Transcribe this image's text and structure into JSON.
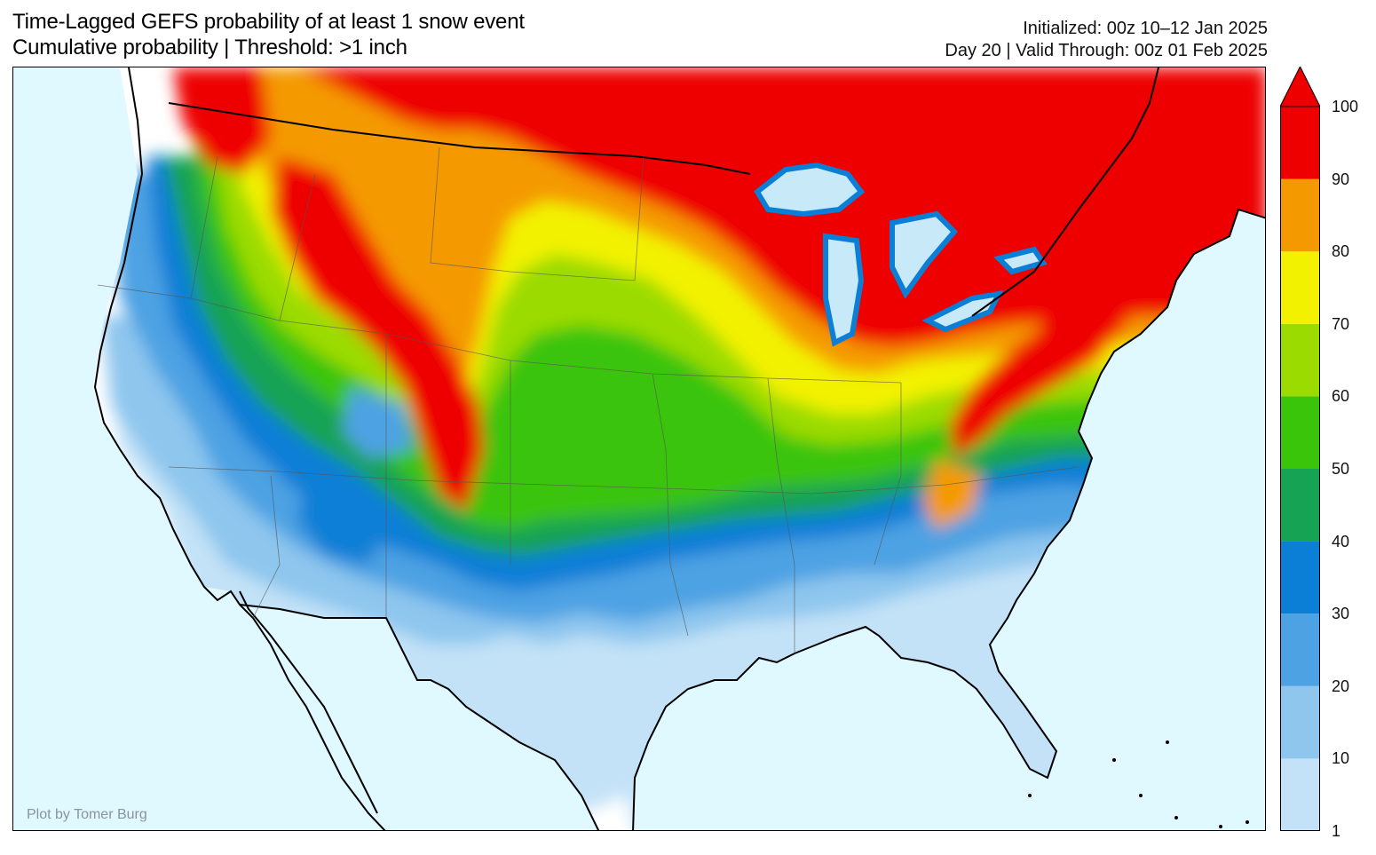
{
  "header": {
    "title_line1": "Time-Lagged GEFS probability of at least 1 snow event",
    "title_line2": "Cumulative probability | Threshold: >1 inch",
    "initialized": "Initialized: 00z 10–12 Jan 2025",
    "valid": "Day 20 | Valid Through: 00z 01 Feb 2025"
  },
  "credit": "Plot by Tomer Burg",
  "map": {
    "region": "Contiguous United States",
    "ocean_color": "#e0f8ff",
    "land_below_threshold_color": "#ffffff"
  },
  "colorbar": {
    "ticks": [
      "1",
      "10",
      "20",
      "30",
      "40",
      "50",
      "60",
      "70",
      "80",
      "90",
      "100"
    ],
    "colors": [
      "#c3e2f7",
      "#8ec6ee",
      "#4da2e3",
      "#0b7fd6",
      "#17a354",
      "#3ac40a",
      "#9bdb00",
      "#f2f200",
      "#f49a00",
      "#ee0000"
    ]
  }
}
